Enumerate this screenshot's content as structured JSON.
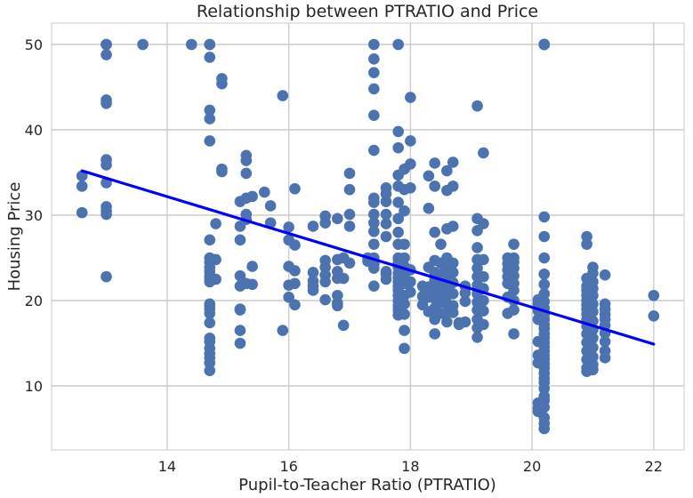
{
  "chart_data": {
    "type": "scatter",
    "title": "Relationship between PTRATIO and Price",
    "xlabel": "Pupil-to-Teacher Ratio (PTRATIO)",
    "ylabel": "Housing Price",
    "xlim": [
      12.1,
      22.5
    ],
    "ylim": [
      2.5,
      52.5
    ],
    "xticks": [
      14,
      16,
      18,
      20,
      22
    ],
    "yticks": [
      10,
      20,
      30,
      40,
      50
    ],
    "grid": true,
    "colors": {
      "points": "#4c72b0",
      "trend": "#0000ff",
      "grid": "#cccccc",
      "background": "#ffffff"
    },
    "trend_line": {
      "x": [
        12.6,
        22.0
      ],
      "y": [
        35.2,
        14.9
      ]
    },
    "columns": [
      {
        "x": 12.6,
        "y": [
          34.6,
          33.4,
          30.3
        ]
      },
      {
        "x": 13.0,
        "y": [
          50,
          50,
          48.8,
          43.5,
          43.1,
          36.5,
          35.9,
          33.8,
          31.0,
          30.5,
          30.1,
          22.8
        ]
      },
      {
        "x": 13.6,
        "y": [
          50
        ]
      },
      {
        "x": 14.4,
        "y": [
          50
        ]
      },
      {
        "x": 14.7,
        "y": [
          50,
          50,
          48.5,
          42.3,
          41.3,
          38.7,
          27.1,
          25.0,
          24.5,
          23.9,
          23.4,
          22.9,
          22.6,
          22.2,
          19.6,
          19.4,
          19.0,
          18.5,
          17.4,
          15.6,
          15.2,
          14.4,
          13.8,
          13.3,
          12.7,
          11.8
        ]
      },
      {
        "x": 14.8,
        "y": [
          24.8,
          29.0,
          22.5
        ]
      },
      {
        "x": 14.9,
        "y": [
          46.0,
          45.4,
          35.4,
          35.1
        ]
      },
      {
        "x": 15.2,
        "y": [
          31.6,
          28.7,
          27.1,
          22.9,
          21.7,
          19.0,
          18.9,
          16.5,
          15.0
        ]
      },
      {
        "x": 15.3,
        "y": [
          37.0,
          36.4,
          34.9,
          32.0,
          30.1,
          29.5,
          22.0
        ]
      },
      {
        "x": 15.4,
        "y": [
          32.2,
          24.0,
          21.9
        ]
      },
      {
        "x": 15.6,
        "y": [
          32.7
        ]
      },
      {
        "x": 15.7,
        "y": [
          31.1,
          29.1
        ]
      },
      {
        "x": 15.9,
        "y": [
          44.0,
          16.5
        ]
      },
      {
        "x": 16.0,
        "y": [
          28.6,
          27.1,
          24.0,
          21.8,
          20.4
        ]
      },
      {
        "x": 16.1,
        "y": [
          33.1,
          26.5,
          23.5,
          22.0,
          19.5
        ]
      },
      {
        "x": 16.4,
        "y": [
          28.7,
          23.3,
          22.3,
          21.7,
          21.2
        ]
      },
      {
        "x": 16.6,
        "y": [
          29.9,
          29.1,
          24.7,
          23.9,
          23.0,
          22.2,
          20.1
        ]
      },
      {
        "x": 16.8,
        "y": [
          29.6,
          24.8,
          23.4,
          22.6,
          20.6,
          19.7,
          19.4
        ]
      },
      {
        "x": 16.9,
        "y": [
          25.0,
          22.6,
          17.1
        ]
      },
      {
        "x": 17.0,
        "y": [
          34.9,
          33.0,
          30.1,
          28.7,
          24.4
        ]
      },
      {
        "x": 17.3,
        "y": [
          25.0,
          24.6
        ]
      },
      {
        "x": 17.4,
        "y": [
          50,
          48.3,
          46.7,
          44.8,
          41.7,
          37.6,
          32.0,
          31.5,
          30.1,
          29.1,
          28.1,
          26.6,
          25.0,
          24.3,
          23.8,
          21.7
        ]
      },
      {
        "x": 17.6,
        "y": [
          33.2,
          32.5,
          31.6,
          30.1,
          29.0,
          27.5,
          23.4,
          23.1,
          22.5
        ]
      },
      {
        "x": 17.8,
        "y": [
          50,
          39.8,
          37.9,
          34.7,
          33.4,
          31.5,
          29.6,
          28.0,
          26.6,
          25.0,
          24.4,
          23.9,
          23.2,
          22.7,
          22.2,
          21.7,
          21.2,
          20.6,
          20.0,
          19.4,
          18.9,
          18.3
        ]
      },
      {
        "x": 17.9,
        "y": [
          35.4,
          33.0,
          30.5,
          26.6,
          25.0,
          24.0,
          23.1,
          22.0,
          20.6,
          19.6,
          18.4,
          16.5,
          14.4
        ]
      },
      {
        "x": 18.0,
        "y": [
          43.8,
          38.7,
          36.0,
          33.2,
          23.6,
          22.2,
          21.0
        ]
      },
      {
        "x": 18.2,
        "y": [
          21.7,
          20.5,
          19.5
        ]
      },
      {
        "x": 18.3,
        "y": [
          34.6,
          30.8,
          23.9,
          21.6,
          20.4,
          18.7
        ]
      },
      {
        "x": 18.4,
        "y": [
          36.1,
          33.4,
          28.0,
          24.7,
          23.3,
          22.4,
          21.2,
          20.2,
          19.1,
          17.8,
          16.1
        ]
      },
      {
        "x": 18.5,
        "y": [
          26.6,
          24.4,
          23.1,
          22.0,
          20.9,
          19.8,
          18.5
        ]
      },
      {
        "x": 18.6,
        "y": [
          35.2,
          32.9,
          28.4,
          25.0,
          24.1,
          23.1,
          22.2,
          21.4,
          20.6,
          19.6,
          18.6,
          17.5
        ]
      },
      {
        "x": 18.7,
        "y": [
          36.2,
          33.4,
          28.7,
          24.4,
          23.3,
          22.1,
          20.8,
          19.4,
          18.6
        ]
      },
      {
        "x": 18.8,
        "y": [
          17.4,
          17.2
        ]
      },
      {
        "x": 18.9,
        "y": [
          21.7,
          20.9,
          19.9,
          17.5
        ]
      },
      {
        "x": 19.1,
        "y": [
          42.8,
          29.6,
          28.2,
          26.2,
          24.8,
          23.8,
          22.8,
          21.8,
          20.8,
          19.8,
          18.9,
          17.8,
          16.8,
          15.7
        ]
      },
      {
        "x": 19.2,
        "y": [
          37.3,
          29.0,
          24.8,
          22.8,
          21.4,
          20.0,
          18.8,
          17.2
        ]
      },
      {
        "x": 19.6,
        "y": [
          25.0,
          24.3,
          23.6,
          22.8,
          22.0,
          20.4,
          18.5
        ]
      },
      {
        "x": 19.7,
        "y": [
          26.6,
          25.0,
          24.5,
          23.8,
          22.9,
          22.0,
          21.2,
          20.0,
          18.9,
          16.1
        ]
      },
      {
        "x": 20.1,
        "y": [
          20.1,
          19.6,
          18.8,
          17.8,
          15.2,
          13.6,
          12.7,
          8.0,
          7.4,
          7.0
        ]
      },
      {
        "x": 20.2,
        "y": [
          50,
          50,
          50,
          50,
          50,
          29.8,
          27.5,
          25.0,
          23.1,
          21.9,
          20.8,
          19.9,
          19.1,
          18.4,
          17.8,
          17.2,
          16.7,
          16.1,
          15.6,
          15.1,
          14.6,
          14.1,
          13.6,
          13.1,
          12.6,
          12.1,
          11.5,
          10.9,
          10.4,
          9.7,
          8.8,
          8.3,
          7.5,
          6.3,
          5.6,
          5.0
        ]
      },
      {
        "x": 20.9,
        "y": [
          27.5,
          26.6,
          22.6,
          21.7,
          21.2,
          20.6,
          20.0,
          19.5,
          19.0,
          18.4,
          17.8,
          17.0,
          16.1,
          15.1,
          14.1,
          13.1,
          12.1,
          11.7
        ]
      },
      {
        "x": 21.0,
        "y": [
          23.9,
          23.2,
          22.2,
          21.4,
          20.6,
          19.6,
          18.7,
          17.6,
          16.6,
          15.6,
          14.5,
          13.4,
          12.5,
          11.9
        ]
      },
      {
        "x": 21.2,
        "y": [
          23.0,
          19.6,
          19.0,
          18.4,
          17.8,
          17.1,
          16.2,
          15.2,
          14.1,
          13.3
        ]
      },
      {
        "x": 22.0,
        "y": [
          20.6,
          18.2
        ]
      }
    ]
  }
}
